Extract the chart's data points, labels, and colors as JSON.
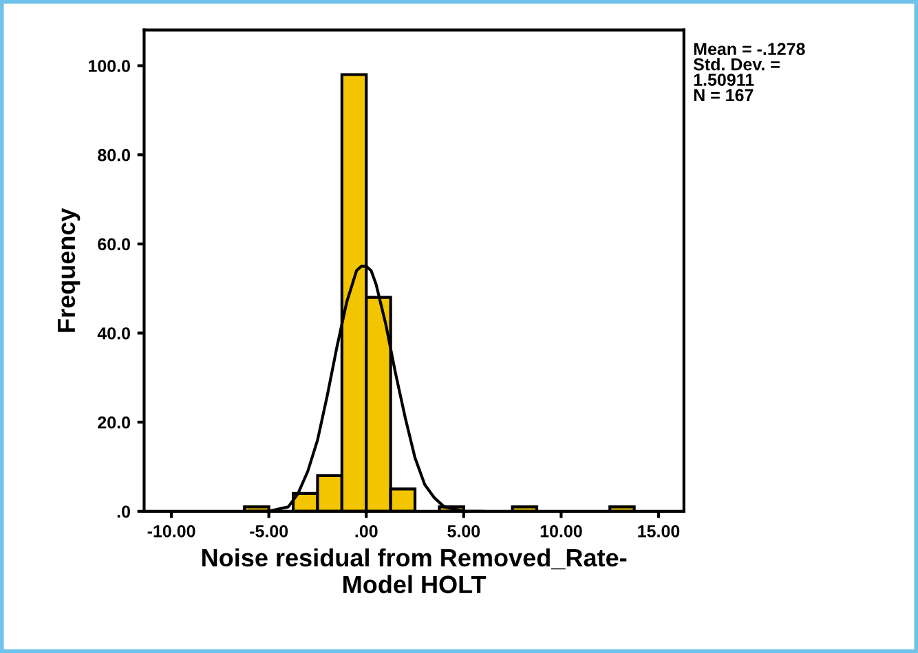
{
  "chart_data": {
    "type": "histogram",
    "xlabel": "Noise residual from Removed_Rate-\nModel HOLT",
    "ylabel": "Frequency",
    "bins": [
      -6.25,
      -5,
      -3.75,
      -2.5,
      -1.25,
      0,
      1.25,
      2.5,
      3.75,
      5,
      6.25,
      7.5,
      8.75,
      10,
      11.25,
      12.5,
      13.75
    ],
    "values": [
      1,
      0,
      4,
      8,
      98,
      48,
      5,
      0,
      1,
      0,
      0,
      1,
      0,
      0,
      0,
      1
    ],
    "color": "#f2c500",
    "series": [
      {
        "type": "line",
        "color": "#000000",
        "x": [
          -6,
          -5,
          -4,
          -3.5,
          -3,
          -2.5,
          -2,
          -1.5,
          -1,
          -0.5,
          -0.25,
          0,
          0.25,
          0.5,
          1,
          1.5,
          2,
          2.5,
          3,
          3.5,
          4,
          5,
          6
        ],
        "values": [
          0,
          0,
          1,
          4,
          9,
          16,
          26,
          37,
          47,
          54,
          55,
          55,
          54,
          51,
          42,
          31,
          21,
          12,
          6,
          3,
          1,
          0,
          0
        ]
      }
    ],
    "xlim": [
      -11.4,
      16.3
    ],
    "ylim": [
      0,
      108
    ],
    "xticks": [
      {
        "value": -10,
        "label": "-10.00"
      },
      {
        "value": -5,
        "label": "-5.00"
      },
      {
        "value": 0,
        "label": ".00"
      },
      {
        "value": 5,
        "label": "5.00"
      },
      {
        "value": 10,
        "label": "10.00"
      },
      {
        "value": 15,
        "label": "15.00"
      }
    ],
    "yticks": [
      {
        "value": 0,
        "label": ".0"
      },
      {
        "value": 20,
        "label": "20.0"
      },
      {
        "value": 40,
        "label": "40.0"
      },
      {
        "value": 60,
        "label": "60.0"
      },
      {
        "value": 80,
        "label": "80.0"
      },
      {
        "value": 100,
        "label": "100.0"
      }
    ],
    "grid": false,
    "legend": false,
    "annotations": [
      "Mean = -.1278\nStd. Dev. =\n1.50911\nN = 167"
    ]
  }
}
